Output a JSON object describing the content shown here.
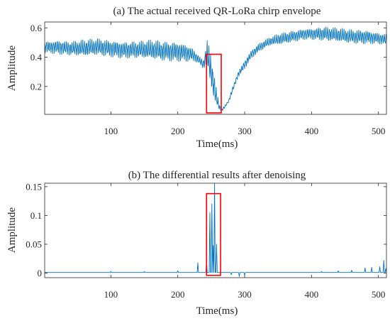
{
  "chart_data": [
    {
      "type": "line",
      "title": "(a) The actual received QR-LoRa chirp envelope",
      "xlabel": "Time(ms)",
      "ylabel": "Amplitude",
      "xlim": [
        1,
        512
      ],
      "ylim": [
        0.01,
        0.64
      ],
      "xticks": [
        100,
        200,
        300,
        400,
        500
      ],
      "yticks": [
        0.2,
        0.4,
        0.6
      ],
      "ytick_labels": [
        "0.2",
        "0.4",
        "0.6"
      ],
      "grid": false,
      "series": [
        {
          "color": "#0072BD",
          "x": [
            1,
            20,
            40,
            60,
            80,
            100,
            120,
            140,
            160,
            180,
            200,
            215,
            225,
            232,
            238,
            244,
            250,
            254,
            258,
            262,
            266,
            270,
            276,
            282,
            290,
            300,
            310,
            320,
            330,
            340,
            350,
            360,
            370,
            380,
            390,
            400,
            420,
            440,
            460,
            480,
            500,
            512
          ],
          "y": [
            0.47,
            0.47,
            0.46,
            0.46,
            0.47,
            0.46,
            0.45,
            0.45,
            0.45,
            0.44,
            0.44,
            0.43,
            0.41,
            0.38,
            0.35,
            0.42,
            0.3,
            0.2,
            0.12,
            0.06,
            0.04,
            0.06,
            0.1,
            0.18,
            0.28,
            0.35,
            0.42,
            0.46,
            0.49,
            0.51,
            0.52,
            0.53,
            0.54,
            0.55,
            0.56,
            0.56,
            0.56,
            0.55,
            0.54,
            0.54,
            0.53,
            0.52
          ],
          "amplitude": [
            0.04,
            0.05,
            0.05,
            0.06,
            0.06,
            0.06,
            0.06,
            0.06,
            0.07,
            0.07,
            0.07,
            0.06,
            0.04,
            0.03,
            0.03,
            0.1,
            0.12,
            0.1,
            0.06,
            0.02,
            0.01,
            0.01,
            0.01,
            0.02,
            0.02,
            0.03,
            0.03,
            0.03,
            0.03,
            0.03,
            0.04,
            0.04,
            0.04,
            0.04,
            0.04,
            0.04,
            0.05,
            0.05,
            0.05,
            0.05,
            0.04,
            0.04
          ]
        }
      ],
      "highlight_box": {
        "x": [
          243,
          265
        ],
        "y": [
          0.02,
          0.42
        ],
        "color": "#ff0000"
      }
    },
    {
      "type": "line",
      "title": "(b) The differential results after denoising",
      "xlabel": "Time(ms)",
      "ylabel": "Amplitude",
      "xlim": [
        1,
        512
      ],
      "ylim": [
        -0.008,
        0.156
      ],
      "xticks": [
        100,
        200,
        300,
        400,
        500
      ],
      "yticks": [
        0,
        0.05,
        0.1,
        0.15
      ],
      "ytick_labels": [
        "0",
        "0.05",
        "0.1",
        "0.15"
      ],
      "grid": false,
      "series": [
        {
          "color": "#0072BD",
          "baseline": 0.001,
          "spikes": [
            [
              100,
              0.003
            ],
            [
              150,
              0.003
            ],
            [
              200,
              0.004
            ],
            [
              230,
              0.018
            ],
            [
              243,
              0.022
            ],
            [
              248,
              0.105
            ],
            [
              251,
              0.12
            ],
            [
              253,
              0.048
            ],
            [
              255,
              0.156
            ],
            [
              258,
              0.05
            ],
            [
              280,
              -0.003
            ],
            [
              292,
              -0.006
            ],
            [
              300,
              -0.004
            ],
            [
              415,
              0.003
            ],
            [
              440,
              0.004
            ],
            [
              460,
              0.005
            ],
            [
              480,
              0.009
            ],
            [
              490,
              0.01
            ],
            [
              502,
              0.011
            ],
            [
              508,
              0.022
            ],
            [
              511,
              0.008
            ]
          ]
        }
      ],
      "highlight_box": {
        "x": [
          243,
          264
        ],
        "y": [
          -0.004,
          0.138
        ],
        "color": "#ff0000"
      }
    }
  ]
}
